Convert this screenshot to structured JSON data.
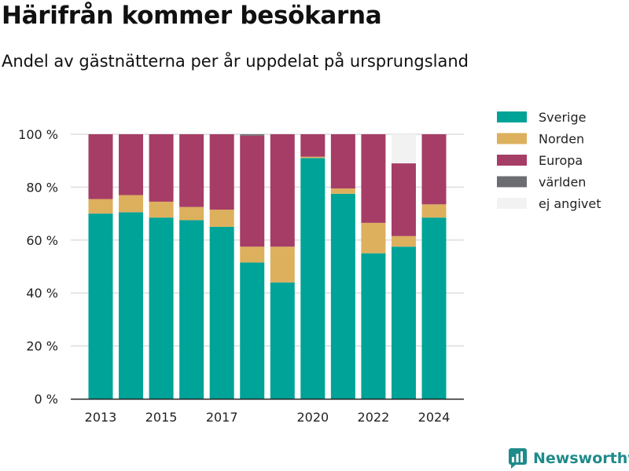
{
  "header": {
    "title": "Härifrån kommer besökarna",
    "subtitle": "Andel av gästnätterna per år uppdelat på ursprungsland"
  },
  "brand": {
    "name": "Newsworthy",
    "icon": "newsworthy-logo-icon",
    "color": "#1f8a8a"
  },
  "chart_data": {
    "type": "bar",
    "stacked": true,
    "categories": [
      "2013",
      "2014",
      "2015",
      "2016",
      "2017",
      "2018",
      "2019",
      "2020",
      "2021",
      "2022",
      "2023",
      "2024"
    ],
    "x_tick_labels": [
      "2013",
      "2015",
      "2017",
      "2020",
      "2022",
      "2024"
    ],
    "y_tick_labels": [
      "0 %",
      "20 %",
      "40 %",
      "60 %",
      "80 %",
      "100 %"
    ],
    "ylim": [
      0,
      100
    ],
    "grid": true,
    "legend_position": "right",
    "series": [
      {
        "name": "Sverige",
        "color": "#00a398",
        "values": [
          70,
          70.5,
          68.5,
          67.5,
          65,
          51.5,
          44,
          91,
          77.5,
          55,
          57.5,
          68.5
        ]
      },
      {
        "name": "Norden",
        "color": "#ddb05e",
        "values": [
          5.5,
          6.5,
          6,
          5,
          6.5,
          6,
          13.5,
          0.5,
          2,
          11.5,
          4,
          5
        ]
      },
      {
        "name": "Europa",
        "color": "#a63d66",
        "values": [
          24.5,
          23,
          25.5,
          27.5,
          28.5,
          42,
          42.5,
          8.5,
          20.5,
          33.5,
          27.5,
          26.5
        ]
      },
      {
        "name": "världen",
        "color": "#6b6d71",
        "values": [
          0,
          0,
          0,
          0,
          0,
          0.5,
          0,
          0,
          0,
          0,
          0,
          0
        ]
      },
      {
        "name": "ej angivet",
        "color": "#f2f2f2",
        "values": [
          0,
          0,
          0,
          0,
          0,
          0,
          0,
          0,
          0,
          0,
          11,
          0
        ]
      }
    ]
  }
}
